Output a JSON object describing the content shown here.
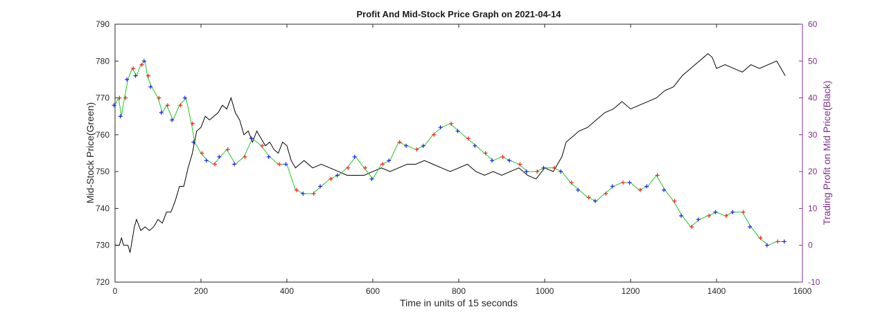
{
  "chart_data": {
    "type": "line",
    "title": "Profit And Mid-Stock Price Graph on 2021-04-14",
    "xlabel": "Time in units of 15 seconds",
    "ylabel_left": "Mid-Stock Price(Green)",
    "ylabel_right": "Trading Profit on Mid Price(Black)",
    "xlim": [
      0,
      1600
    ],
    "ylim_left": [
      720,
      790
    ],
    "ylim_right": [
      -10,
      60
    ],
    "x_ticks": [
      "0",
      "200",
      "400",
      "600",
      "800",
      "1000",
      "1200",
      "1400",
      "1600"
    ],
    "y_ticks_left": [
      "720",
      "730",
      "740",
      "750",
      "760",
      "770",
      "780",
      "790"
    ],
    "y_ticks_right": [
      "-10",
      "0",
      "10",
      "20",
      "30",
      "40",
      "50",
      "60"
    ],
    "grid": false,
    "colors": {
      "price": "#22c722",
      "profit": "#000000",
      "buy_marker": "#1a1aff",
      "sell_marker": "#ff1a1a",
      "right_axis": "#7e2f8e"
    },
    "series": [
      {
        "name": "Mid-Stock Price",
        "axis": "left",
        "x": [
          0,
          8,
          15,
          22,
          30,
          40,
          50,
          60,
          70,
          75,
          85,
          100,
          110,
          120,
          135,
          150,
          165,
          178,
          185,
          200,
          215,
          230,
          245,
          260,
          280,
          300,
          320,
          340,
          360,
          380,
          400,
          420,
          440,
          460,
          480,
          500,
          520,
          540,
          560,
          580,
          600,
          620,
          640,
          660,
          680,
          700,
          720,
          740,
          760,
          780,
          800,
          820,
          840,
          860,
          880,
          900,
          920,
          940,
          960,
          980,
          1000,
          1020,
          1040,
          1060,
          1080,
          1100,
          1120,
          1140,
          1160,
          1180,
          1200,
          1220,
          1240,
          1260,
          1280,
          1300,
          1320,
          1340,
          1360,
          1380,
          1400,
          1420,
          1440,
          1460,
          1480,
          1500,
          1520,
          1540,
          1560
        ],
        "values": [
          768,
          770,
          765,
          770,
          775,
          778,
          776,
          779,
          780,
          776,
          773,
          770,
          766,
          768,
          764,
          768,
          770,
          763,
          758,
          755,
          753,
          752,
          754,
          756,
          752,
          754,
          759,
          757,
          754,
          752,
          752,
          745,
          744,
          744,
          746,
          748,
          749,
          751,
          754,
          751,
          748,
          752,
          753,
          758,
          757,
          756,
          757,
          760,
          762,
          763,
          761,
          759,
          757,
          755,
          753,
          754,
          753,
          752,
          750,
          750,
          751,
          751,
          750,
          747,
          745,
          743,
          742,
          744,
          746,
          747,
          747,
          745,
          746,
          749,
          745,
          742,
          738,
          735,
          737,
          738,
          739,
          738,
          739,
          739,
          735,
          732,
          730,
          731,
          731
        ]
      },
      {
        "name": "Trading Profit",
        "axis": "right",
        "x": [
          0,
          10,
          15,
          20,
          30,
          35,
          45,
          50,
          60,
          70,
          80,
          90,
          100,
          110,
          120,
          130,
          140,
          150,
          160,
          170,
          180,
          190,
          200,
          210,
          220,
          230,
          240,
          250,
          260,
          270,
          280,
          290,
          300,
          310,
          320,
          330,
          340,
          350,
          360,
          370,
          380,
          390,
          400,
          410,
          420,
          430,
          440,
          460,
          480,
          500,
          520,
          540,
          560,
          580,
          600,
          620,
          640,
          660,
          680,
          700,
          720,
          740,
          760,
          780,
          800,
          820,
          840,
          860,
          880,
          900,
          920,
          940,
          960,
          980,
          1000,
          1020,
          1040,
          1050,
          1060,
          1080,
          1100,
          1120,
          1140,
          1160,
          1180,
          1200,
          1220,
          1240,
          1260,
          1280,
          1300,
          1320,
          1340,
          1360,
          1380,
          1390,
          1400,
          1420,
          1440,
          1460,
          1480,
          1500,
          1520,
          1540,
          1560
        ],
        "values": [
          0,
          0,
          2,
          0,
          0,
          -2,
          5,
          7,
          4,
          5,
          4,
          5,
          7,
          6,
          9,
          9,
          12,
          16,
          16,
          21,
          25,
          31,
          32,
          35,
          34,
          35,
          36,
          38,
          37,
          40,
          36,
          34,
          30,
          31,
          28,
          31,
          29,
          27,
          28,
          26,
          25,
          28,
          27,
          23,
          21,
          22,
          23,
          21,
          22,
          21,
          20,
          19,
          19,
          19,
          20,
          21,
          20,
          21,
          22,
          22,
          23,
          22,
          21,
          20,
          21,
          22,
          20,
          19,
          20,
          19,
          20,
          21,
          19,
          18,
          21,
          20,
          24,
          28,
          29,
          31,
          32,
          34,
          36,
          37,
          39,
          37,
          38,
          39,
          40,
          42,
          43,
          46,
          48,
          50,
          52,
          51,
          48,
          49,
          48,
          47,
          49,
          48,
          49,
          50,
          46
        ]
      }
    ]
  }
}
